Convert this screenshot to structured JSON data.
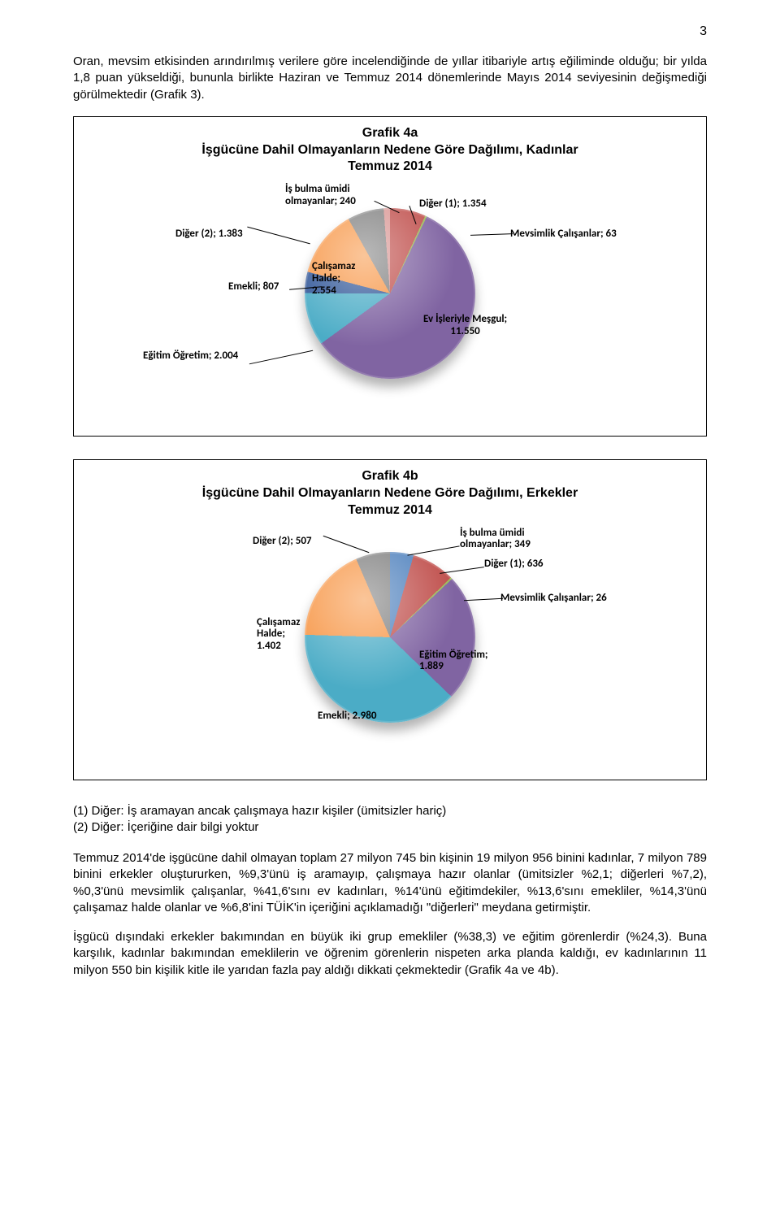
{
  "page_number": "3",
  "para1": "Oran, mevsim etkisinden arındırılmış verilere göre incelendiğinde de yıllar itibariyle artış eğiliminde olduğu; bir yılda 1,8 puan yükseldiği, bununla birlikte Haziran ve Temmuz 2014 dönemlerinde Mayıs 2014 seviyesinin değişmediği görülmektedir (Grafik 3).",
  "chart4a": {
    "title_line1": "Grafik 4a",
    "title_line2": "İşgücüne Dahil Olmayanların Nedene Göre Dağılımı, Kadınlar",
    "title_line3": "Temmuz 2014",
    "type": "pie",
    "labels": {
      "is_bulma": "İş bulma ümidi\nolmayanlar; 240",
      "diger1": "Diğer (1); 1.354",
      "mevsimlik": "Mevsimlik Çalışanlar; 63",
      "ev_isleri": "Ev İşleriyle Meşgul;\n11.550",
      "egitim": "Eğitim Öğretim; 2.004",
      "emekli": "Emekli; 807",
      "calisamaz": "Çalışamaz\nHalde;\n2.554",
      "diger2": "Diğer (2); 1.383"
    },
    "slices": [
      {
        "name": "diger1",
        "value": 1354,
        "color": "#c0504d",
        "start": 0,
        "end": 24.4
      },
      {
        "name": "mevsimlik",
        "value": 63,
        "color": "#9bbb59",
        "start": 24.4,
        "end": 25.6
      },
      {
        "name": "ev_isleri",
        "value": 11550,
        "color": "#8064a2",
        "start": 25.6,
        "end": 234
      },
      {
        "name": "egitim",
        "value": 2004,
        "color": "#4bacc6",
        "start": 234,
        "end": 270.2
      },
      {
        "name": "emekli",
        "value": 807,
        "color": "#2f5597",
        "start": 270.2,
        "end": 284.7
      },
      {
        "name": "calisamaz",
        "value": 2554,
        "color": "#f79646",
        "start": 284.7,
        "end": 330.8
      },
      {
        "name": "diger2",
        "value": 1383,
        "color": "#7f7f7f",
        "start": 330.8,
        "end": 355.7
      },
      {
        "name": "is_bulma",
        "value": 240,
        "color": "#d99694",
        "start": 355.7,
        "end": 360
      }
    ],
    "background_color": "#ffffff",
    "label_fontsize": 13
  },
  "chart4b": {
    "title_line1": "Grafik 4b",
    "title_line2": "İşgücüne Dahil Olmayanların Nedene Göre Dağılımı, Erkekler",
    "title_line3": "Temmuz 2014",
    "type": "pie",
    "labels": {
      "diger2": "Diğer (2); 507",
      "is_bulma": "İş bulma ümidi\nolmayanlar; 349",
      "diger1": "Diğer (1); 636",
      "mevsimlik": "Mevsimlik Çalışanlar; 26",
      "egitim": "Eğitim Öğretim;\n1.889",
      "emekli": "Emekli; 2.980",
      "calisamaz": "Çalışamaz\nHalde;\n1.402"
    },
    "slices": [
      {
        "name": "is_bulma",
        "value": 349,
        "color": "#4f81bd",
        "start": 0,
        "end": 16.1
      },
      {
        "name": "diger1",
        "value": 636,
        "color": "#c0504d",
        "start": 16.1,
        "end": 45.5
      },
      {
        "name": "mevsimlik",
        "value": 26,
        "color": "#9bbb59",
        "start": 45.5,
        "end": 46.7
      },
      {
        "name": "egitim",
        "value": 1889,
        "color": "#8064a2",
        "start": 46.7,
        "end": 134
      },
      {
        "name": "emekli",
        "value": 2980,
        "color": "#4bacc6",
        "start": 134,
        "end": 271.7
      },
      {
        "name": "calisamaz",
        "value": 1402,
        "color": "#f79646",
        "start": 271.7,
        "end": 336.6
      },
      {
        "name": "diger2",
        "value": 507,
        "color": "#7f7f7f",
        "start": 336.6,
        "end": 360
      }
    ],
    "background_color": "#ffffff",
    "label_fontsize": 13
  },
  "footnote1": "(1) Diğer: İş aramayan ancak çalışmaya hazır kişiler (ümitsizler hariç)",
  "footnote2": "(2) Diğer: İçeriğine dair bilgi yoktur",
  "para2": "Temmuz 2014'de işgücüne dahil olmayan toplam 27 milyon 745 bin kişinin 19 milyon 956 binini kadınlar, 7 milyon 789 binini erkekler oluştururken, %9,3'ünü iş aramayıp, çalışmaya hazır olanlar (ümitsizler %2,1; diğerleri %7,2), %0,3'ünü mevsimlik çalışanlar, %41,6'sını ev kadınları, %14'ünü eğitimdekiler, %13,6'sını emekliler, %14,3'ünü çalışamaz halde olanlar ve %6,8'ini TÜİK'in içeriğini açıklamadığı \"diğerleri\" meydana getirmiştir.",
  "para3": "İşgücü dışındaki erkekler bakımından en büyük iki grup emekliler (%38,3) ve eğitim görenlerdir (%24,3). Buna karşılık, kadınlar bakımından emeklilerin ve öğrenim görenlerin nispeten arka planda kaldığı, ev kadınlarının 11 milyon 550 bin kişilik kitle ile yarıdan fazla pay aldığı dikkati çekmektedir (Grafik 4a ve 4b)."
}
